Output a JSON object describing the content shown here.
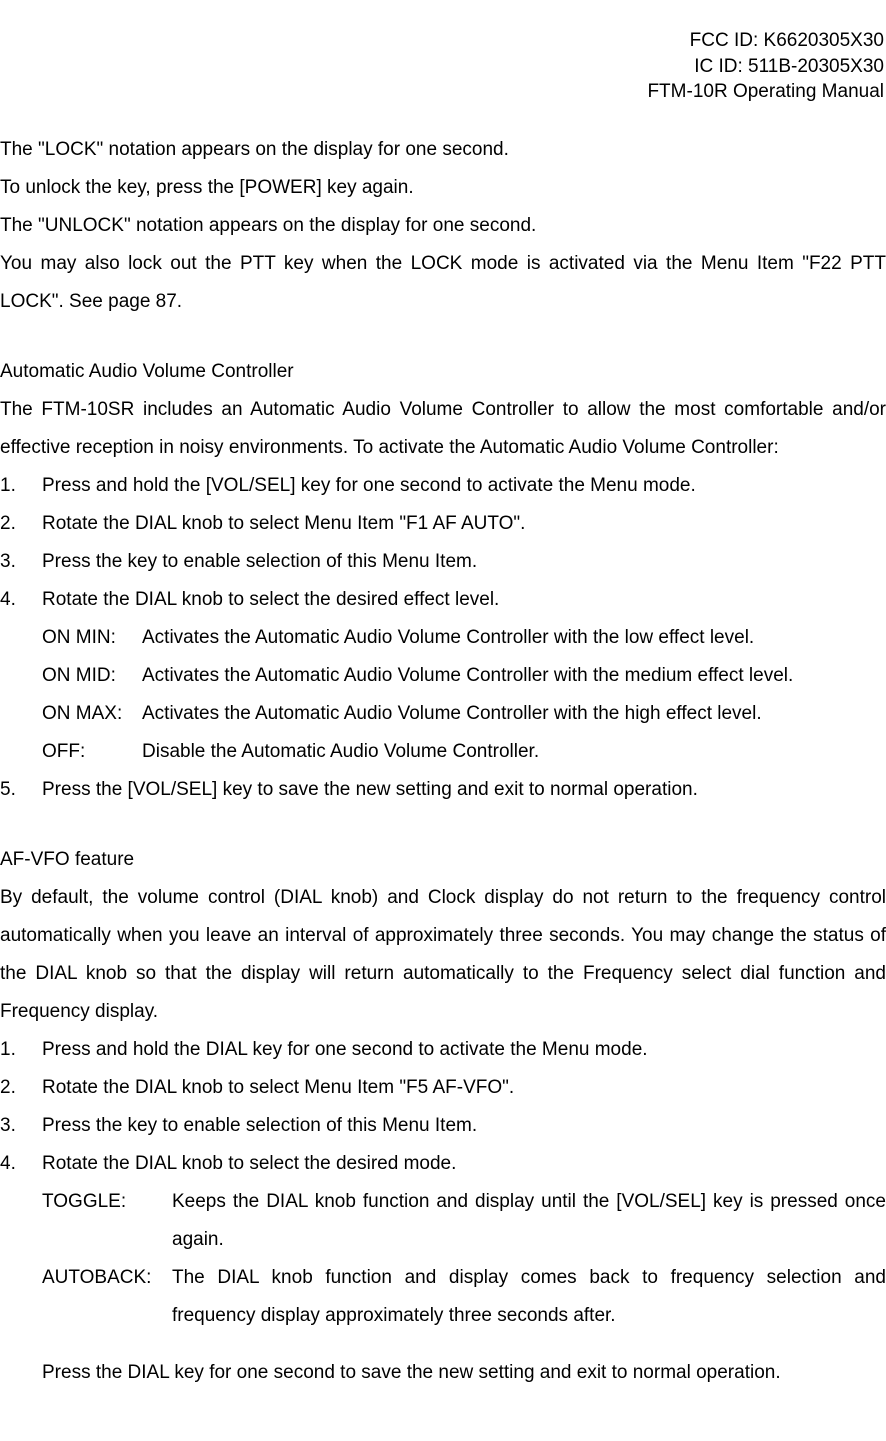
{
  "header": {
    "fcc_id": "FCC ID: K6620305X30",
    "ic_id": "IC ID: 511B-20305X30",
    "manual": "FTM-10R Operating Manual"
  },
  "intro": {
    "p1": "The \"LOCK\" notation appears on the display for one second.",
    "p2": "To unlock the key, press the [POWER] key again.",
    "p3": "The \"UNLOCK\" notation appears on the display for one second.",
    "p4": "You may also lock out the PTT key when the LOCK mode is activated via the Menu Item \"F22 PTT LOCK\". See page 87."
  },
  "section_aavc": {
    "title": "Automatic Audio Volume Controller",
    "desc": "The FTM-10SR includes an Automatic Audio Volume Controller to allow the most comfortable and/or effective reception in noisy environments. To activate the Automatic Audio Volume Controller:",
    "steps": [
      "Press and hold the [VOL/SEL] key for one second to activate the Menu mode.",
      "Rotate the DIAL knob to select Menu Item \"F1 AF AUTO\".",
      "Press the   key to enable selection of this Menu Item.",
      "Rotate the DIAL knob to select the desired effect level."
    ],
    "defs": [
      {
        "term": "ON MIN:",
        "desc": "Activates the Automatic Audio Volume Controller with the low effect level."
      },
      {
        "term": "ON MID:",
        "desc": "Activates the Automatic Audio Volume Controller with the medium effect level."
      },
      {
        "term": "ON MAX:",
        "desc": "Activates the Automatic Audio Volume Controller with the high effect level."
      },
      {
        "term": "OFF:",
        "desc": "Disable the Automatic Audio Volume Controller."
      }
    ],
    "step5": "Press the [VOL/SEL] key to save the new setting and exit to normal operation."
  },
  "section_afvfo": {
    "title": "AF-VFO feature",
    "desc": "By default, the volume control (DIAL knob) and Clock display do not return to the frequency control automatically when you leave an interval of approximately three seconds. You may change the status of the DIAL knob so that the display will return automatically to the Frequency select dial function and Frequency display.",
    "steps": [
      "Press and hold the DIAL key for one second to activate the Menu mode.",
      "Rotate the DIAL knob to select Menu Item \"F5 AF-VFO\".",
      "Press the   key to enable selection of this Menu Item.",
      "Rotate the DIAL knob to select the desired mode."
    ],
    "defs": [
      {
        "term": "TOGGLE:",
        "desc": "Keeps the DIAL knob function and display until the [VOL/SEL] key is pressed once again."
      },
      {
        "term": "AUTOBACK:",
        "desc": "The DIAL knob function and display comes back to frequency selection and frequency display approximately three seconds after."
      }
    ],
    "final": "Press the DIAL key for one second to save the new setting and exit to normal operation."
  }
}
